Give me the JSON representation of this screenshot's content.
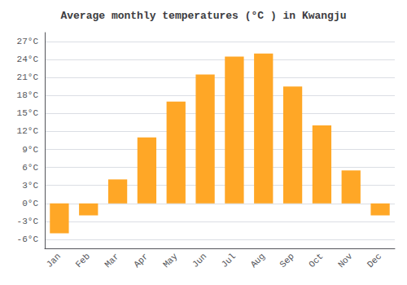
{
  "chart_data": {
    "type": "bar",
    "title": "Average monthly temperatures (°C ) in Kwangju",
    "categories": [
      "Jan",
      "Feb",
      "Mar",
      "Apr",
      "May",
      "Jun",
      "Jul",
      "Aug",
      "Sep",
      "Oct",
      "Nov",
      "Dec"
    ],
    "values": [
      -5.0,
      -2.0,
      4.0,
      11.0,
      17.0,
      21.5,
      24.5,
      25.0,
      19.5,
      13.0,
      5.5,
      -2.0
    ],
    "color": "#FFA726",
    "ylim": [
      -7.5,
      28.5
    ],
    "yticks": [
      {
        "value": -6,
        "label": "-6°C"
      },
      {
        "value": -3,
        "label": "-3°C"
      },
      {
        "value": 0,
        "label": "0°C"
      },
      {
        "value": 3,
        "label": "3°C"
      },
      {
        "value": 6,
        "label": "6°C"
      },
      {
        "value": 9,
        "label": "9°C"
      },
      {
        "value": 12,
        "label": "12°C"
      },
      {
        "value": 15,
        "label": "15°C"
      },
      {
        "value": 18,
        "label": "18°C"
      },
      {
        "value": 21,
        "label": "21°C"
      },
      {
        "value": 24,
        "label": "24°C"
      },
      {
        "value": 27,
        "label": "27°C"
      }
    ],
    "grid": true
  }
}
